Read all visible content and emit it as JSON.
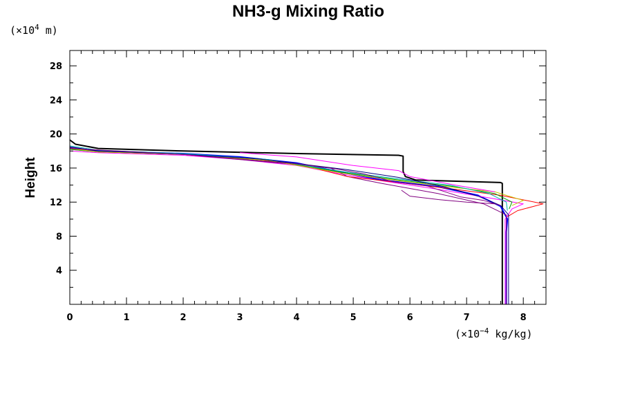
{
  "chart_data": {
    "type": "line",
    "title": "NH3-g Mixing Ratio",
    "xlabel": "",
    "ylabel": "Height",
    "x_unit": {
      "prefix": "(×10",
      "exponent": "−4",
      "suffix": " kg/kg)"
    },
    "y_unit": {
      "prefix": "(×10",
      "exponent": "4",
      "suffix": " m)"
    },
    "xlim": [
      0,
      8.4
    ],
    "ylim": [
      0,
      29.8
    ],
    "x_ticks": [
      "0",
      "1",
      "2",
      "3",
      "4",
      "5",
      "6",
      "7",
      "8"
    ],
    "y_ticks": [
      "4",
      "8",
      "12",
      "16",
      "20",
      "24",
      "28"
    ],
    "grid": false,
    "legend": "none",
    "colors": [
      "#000000",
      "#0000ff",
      "#ff00ff",
      "#800080",
      "#ff0000",
      "#00a000",
      "#c8c800",
      "#00b0b0",
      "#000080"
    ],
    "series": [
      {
        "color": "#000000",
        "width": 2,
        "x": [
          0,
          0.1,
          0.5,
          2,
          4,
          5.8,
          5.88,
          5.88,
          5.92,
          6.1,
          7.6,
          7.63,
          7.63
        ],
        "y": [
          19.3,
          18.8,
          18.3,
          18.0,
          17.7,
          17.5,
          17.4,
          15.6,
          15.0,
          14.6,
          14.3,
          14.2,
          0
        ]
      },
      {
        "color": "#0000ff",
        "width": 2,
        "x": [
          0,
          0.5,
          2,
          3,
          4,
          4.8,
          5.5,
          6.5,
          7.2,
          7.6,
          7.72,
          7.7,
          7.7
        ],
        "y": [
          18.4,
          18.0,
          17.7,
          17.3,
          16.6,
          15.5,
          14.6,
          13.8,
          12.8,
          11.5,
          10.0,
          8.5,
          0
        ]
      },
      {
        "color": "#ff00ff",
        "width": 1,
        "x": [
          0,
          0.5,
          2,
          3,
          4,
          4.8,
          5.5,
          6.5,
          7.4,
          8.0,
          7.8,
          7.68,
          7.68
        ],
        "y": [
          18.0,
          17.8,
          17.5,
          17.0,
          16.3,
          15.3,
          14.5,
          13.5,
          12.5,
          11.8,
          11.2,
          10.0,
          0
        ]
      },
      {
        "color": "#800080",
        "width": 1,
        "x": [
          0,
          0.5,
          2,
          3,
          4,
          4.6,
          4.9,
          5.5,
          6.5,
          7.3,
          7.7,
          7.7
        ],
        "y": [
          18.4,
          17.9,
          17.6,
          17.0,
          16.4,
          16.0,
          15.0,
          14.2,
          13.0,
          11.8,
          10.5,
          0
        ]
      },
      {
        "color": "#ff0000",
        "width": 1,
        "x": [
          0,
          0.5,
          2,
          3,
          4,
          4.9,
          5.8,
          6.8,
          7.6,
          8.35,
          7.9,
          7.72
        ],
        "y": [
          18.2,
          17.9,
          17.6,
          17.2,
          16.5,
          15.0,
          14.3,
          13.5,
          12.8,
          11.8,
          11.0,
          10.3
        ]
      },
      {
        "color": "#00a000",
        "width": 1,
        "x": [
          0,
          0.5,
          2,
          3.5,
          4.8,
          5.8,
          6.8,
          7.5,
          7.8,
          7.75
        ],
        "y": [
          18.2,
          17.9,
          17.6,
          16.9,
          15.5,
          14.6,
          13.8,
          13.0,
          12.0,
          11.2
        ]
      },
      {
        "color": "#c8c800",
        "width": 1,
        "x": [
          0,
          0.5,
          2,
          3.5,
          4.8,
          5.8,
          6.8,
          7.5,
          8.0,
          7.8
        ],
        "y": [
          18.3,
          17.9,
          17.6,
          16.9,
          15.4,
          14.5,
          13.7,
          13.2,
          12.2,
          11.6
        ]
      },
      {
        "color": "#00b0b0",
        "width": 1,
        "x": [
          0,
          0.5,
          2,
          3.5,
          4.8,
          5.7,
          6.7,
          7.4,
          7.7,
          7.72
        ],
        "y": [
          18.6,
          18.1,
          17.7,
          17.0,
          15.6,
          14.8,
          14.0,
          13.0,
          12.0,
          11.0
        ]
      },
      {
        "color": "#000080",
        "width": 1,
        "x": [
          0,
          0.5,
          2,
          3.3,
          4.9,
          5.8,
          6.6,
          7.2,
          7.6,
          7.74,
          7.74
        ],
        "y": [
          18.5,
          18.0,
          17.6,
          17.1,
          15.8,
          14.9,
          13.8,
          12.7,
          11.6,
          10.5,
          0
        ]
      },
      {
        "color": "#800080",
        "width": 1,
        "x": [
          0,
          2,
          4,
          4.7,
          5.2,
          5.7,
          6.3,
          6.9,
          7.3,
          7.6
        ],
        "y": [
          18.3,
          17.6,
          16.5,
          15.9,
          15.3,
          14.4,
          13.9,
          12.6,
          12.2,
          11.6
        ]
      },
      {
        "color": "#800080",
        "width": 1,
        "x": [
          5.85,
          6.0,
          6.5,
          7.0,
          7.5
        ],
        "y": [
          13.4,
          12.7,
          12.3,
          12.0,
          11.8
        ]
      },
      {
        "color": "#ff00ff",
        "width": 1,
        "x": [
          3.0,
          4.0,
          5.0,
          5.8,
          6.0,
          6.8,
          7.5
        ],
        "y": [
          17.8,
          17.3,
          16.3,
          15.7,
          15.0,
          14.0,
          13.2
        ]
      }
    ]
  }
}
